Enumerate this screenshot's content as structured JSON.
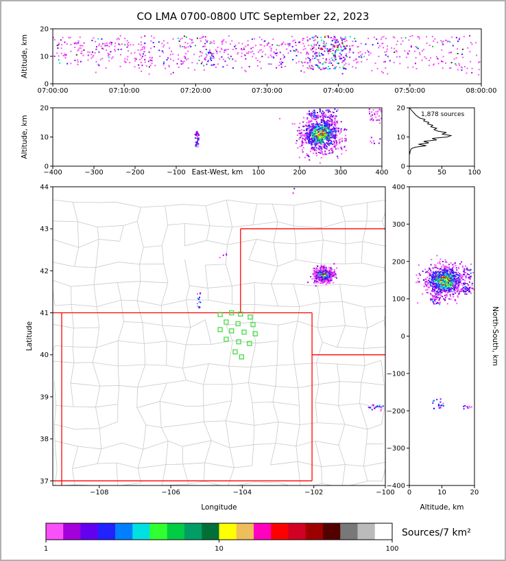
{
  "title": "CO LMA 0700-0800 UTC September 22, 2023",
  "colorbar": {
    "label": "Sources/7 km²",
    "ticks": [
      {
        "pos": 0,
        "t": "1"
      },
      {
        "pos": 0.5,
        "t": "10"
      },
      {
        "pos": 1,
        "t": "100"
      }
    ],
    "colors": [
      "#FA50FA",
      "#A400DC",
      "#6400F0",
      "#2222FF",
      "#0080FF",
      "#00E0E0",
      "#30FF30",
      "#00CC44",
      "#009E66",
      "#007038",
      "#FFFF00",
      "#EDBE5A",
      "#FF00BE",
      "#FF0000",
      "#D20022",
      "#9E0000",
      "#520000",
      "#787878",
      "#BBBBBB",
      "#FFFFFF"
    ]
  },
  "palettes": {
    "sparse": [
      [
        "#FA50FA",
        0.7
      ],
      [
        "#A400DC",
        0.12
      ],
      [
        "#6400F0",
        0.05
      ],
      [
        "#2222FF",
        0.05
      ],
      [
        "#00CC44",
        0.02
      ],
      [
        "#00E0E0",
        0.02
      ],
      [
        "#303030",
        0.04
      ]
    ],
    "mixed": [
      [
        "#FA50FA",
        0.28
      ],
      [
        "#A400DC",
        0.18
      ],
      [
        "#2222FF",
        0.16
      ],
      [
        "#00E0E0",
        0.12
      ],
      [
        "#30FF30",
        0.09
      ],
      [
        "#6400F0",
        0.09
      ],
      [
        "#0080FF",
        0.05
      ],
      [
        "#FF0000",
        0.03
      ]
    ],
    "smallmix": [
      [
        "#2222FF",
        0.32
      ],
      [
        "#A400DC",
        0.22
      ],
      [
        "#FA50FA",
        0.24
      ],
      [
        "#00E0E0",
        0.1
      ],
      [
        "#6400F0",
        0.12
      ]
    ],
    "edge": [
      [
        "#FA50FA",
        0.58
      ],
      [
        "#A400DC",
        0.28
      ],
      [
        "#6400F0",
        0.14
      ]
    ],
    "core": [
      [
        "#FFFF00",
        0.2
      ],
      [
        "#FF0000",
        0.16
      ],
      [
        "#30FF30",
        0.18
      ],
      [
        "#00E0E0",
        0.16
      ],
      [
        "#EDBE5A",
        0.08
      ],
      [
        "#00CC44",
        0.12
      ],
      [
        "#2222FF",
        0.1
      ]
    ],
    "mid": [
      [
        "#00E0E0",
        0.22
      ],
      [
        "#30FF30",
        0.18
      ],
      [
        "#2222FF",
        0.22
      ],
      [
        "#0080FF",
        0.14
      ],
      [
        "#00CC44",
        0.12
      ],
      [
        "#A400DC",
        0.12
      ]
    ],
    "outer": [
      [
        "#2222FF",
        0.3
      ],
      [
        "#6400F0",
        0.25
      ],
      [
        "#A400DC",
        0.25
      ],
      [
        "#0080FF",
        0.1
      ],
      [
        "#FA50FA",
        0.1
      ]
    ]
  },
  "chart_data": [
    {
      "id": "time_height",
      "type": "scatter",
      "ylabel": "Altitude, km",
      "xlim": [
        0,
        3600
      ],
      "ylim": [
        0,
        20
      ],
      "x_ticks": [
        {
          "v": 0,
          "t": "07:00:00"
        },
        {
          "v": 600,
          "t": "07:10:00"
        },
        {
          "v": 1200,
          "t": "07:20:00"
        },
        {
          "v": 1800,
          "t": "07:30:00"
        },
        {
          "v": 2400,
          "t": "07:40:00"
        },
        {
          "v": 3000,
          "t": "07:50:00"
        },
        {
          "v": 3600,
          "t": "08:00:00"
        }
      ],
      "y_ticks": [
        {
          "v": 0,
          "t": "0"
        },
        {
          "v": 10,
          "t": "10"
        },
        {
          "v": 20,
          "t": "20"
        }
      ],
      "clusters": [
        {
          "dist": "uniform",
          "x": [
            0,
            3600
          ],
          "y": [
            5.5,
            17.5
          ],
          "n": 520,
          "palette": "sparse"
        },
        {
          "dist": "uniform",
          "x": [
            30,
            2500
          ],
          "y": [
            7,
            16
          ],
          "n": 230,
          "palette": "sparse"
        },
        {
          "dist": "uniform",
          "x": [
            0,
            3600
          ],
          "y": [
            3.2,
            5.5
          ],
          "n": 22,
          "palette": "sparse"
        },
        {
          "dist": "uniform",
          "x": [
            1290,
            1360
          ],
          "y": [
            6.5,
            12
          ],
          "n": 16,
          "palette": "smallmix"
        },
        {
          "dist": "uniform",
          "x": [
            2150,
            2470
          ],
          "y": [
            5,
            17.5
          ],
          "n": 170,
          "palette": "mixed"
        }
      ]
    },
    {
      "id": "ew_height",
      "type": "scatter",
      "xlabel": "East-West, km",
      "ylabel": "Altitude, km",
      "xlim": [
        -400,
        400
      ],
      "ylim": [
        0,
        20
      ],
      "x_ticks": [
        {
          "v": -400,
          "t": "−400"
        },
        {
          "v": -300,
          "t": "−300"
        },
        {
          "v": -200,
          "t": "−200"
        },
        {
          "v": -100,
          "t": "−100"
        },
        {
          "v": 100,
          "t": "100"
        },
        {
          "v": 200,
          "t": "200"
        },
        {
          "v": 300,
          "t": "300"
        },
        {
          "v": 400,
          "t": "400"
        }
      ],
      "y_ticks": [
        {
          "v": 0,
          "t": "0"
        },
        {
          "v": 10,
          "t": "10"
        },
        {
          "v": 20,
          "t": "20"
        }
      ],
      "clusters": [
        {
          "dist": "gauss",
          "cx": 252,
          "cy": 10.8,
          "sx": 24,
          "sy": 3.1,
          "n": 880,
          "palette": "storm"
        },
        {
          "dist": "uniform",
          "x": [
            222,
            292
          ],
          "y": [
            16.5,
            19.6
          ],
          "n": 60,
          "palette": "outer"
        },
        {
          "dist": "uniform",
          "x": [
            -54,
            -45
          ],
          "y": [
            6.5,
            12
          ],
          "n": 38,
          "palette": "smallmix"
        },
        {
          "dist": "uniform",
          "x": [
            368,
            400
          ],
          "y": [
            14.5,
            19.6
          ],
          "n": 30,
          "palette": "edge"
        },
        {
          "dist": "uniform",
          "x": [
            372,
            398
          ],
          "y": [
            7.5,
            10
          ],
          "n": 8,
          "palette": "edge"
        }
      ]
    },
    {
      "id": "alt_histogram",
      "type": "line",
      "annotation": "1,878 sources",
      "xlim": [
        0,
        100
      ],
      "ylim": [
        0,
        20
      ],
      "x_ticks": [
        {
          "v": 0,
          "t": "0"
        },
        {
          "v": 50,
          "t": "50"
        },
        {
          "v": 100,
          "t": "100"
        }
      ],
      "y_ticks": [
        {
          "v": 0,
          "t": "0"
        },
        {
          "v": 10,
          "t": "10"
        },
        {
          "v": 20,
          "t": "20"
        }
      ],
      "alt_step": 0.5,
      "counts": [
        0,
        0,
        0,
        0,
        0,
        0,
        0,
        0,
        0,
        1,
        1,
        2,
        3,
        9,
        26,
        14,
        30,
        22,
        42,
        35,
        58,
        64,
        50,
        57,
        44,
        38,
        42,
        33,
        36,
        28,
        30,
        22,
        24,
        16,
        13,
        10,
        8,
        6,
        4,
        2,
        0
      ]
    },
    {
      "id": "map",
      "type": "scatter",
      "xlabel": "Longitude",
      "ylabel": "Latitude",
      "xlim": [
        -109.3,
        -100
      ],
      "ylim": [
        36.89,
        44
      ],
      "x_ticks": [
        {
          "v": -108,
          "t": "−108"
        },
        {
          "v": -106,
          "t": "−106"
        },
        {
          "v": -104,
          "t": "−104"
        },
        {
          "v": -102,
          "t": "−102"
        },
        {
          "v": -100,
          "t": "−100"
        }
      ],
      "y_ticks": [
        {
          "v": 37,
          "t": "37"
        },
        {
          "v": 38,
          "t": "38"
        },
        {
          "v": 39,
          "t": "39"
        },
        {
          "v": 40,
          "t": "40"
        },
        {
          "v": 41,
          "t": "41"
        },
        {
          "v": 42,
          "t": "42"
        },
        {
          "v": 43,
          "t": "43"
        },
        {
          "v": 44,
          "t": "44"
        }
      ],
      "county_line_color": "#C8C8C8",
      "state_border_color": "#FF0000",
      "station_color": "#44DD44",
      "state_borders": [
        [
          [
            -109.05,
            36.89
          ],
          [
            -109.05,
            41
          ]
        ],
        [
          [
            -109.3,
            41
          ],
          [
            -102.05,
            41
          ]
        ],
        [
          [
            -102.05,
            41
          ],
          [
            -102.05,
            37
          ]
        ],
        [
          [
            -109.3,
            37
          ],
          [
            -102.05,
            37
          ]
        ],
        [
          [
            -104.05,
            41
          ],
          [
            -104.05,
            43
          ]
        ],
        [
          [
            -104.05,
            43
          ],
          [
            -100,
            43
          ]
        ],
        [
          [
            -102.05,
            40
          ],
          [
            -100,
            40
          ]
        ]
      ],
      "stations": [
        [
          -104.62,
          40.96
        ],
        [
          -104.3,
          41.0
        ],
        [
          -104.05,
          40.97
        ],
        [
          -103.78,
          40.9
        ],
        [
          -104.45,
          40.78
        ],
        [
          -104.12,
          40.74
        ],
        [
          -103.7,
          40.72
        ],
        [
          -104.62,
          40.6
        ],
        [
          -104.3,
          40.57
        ],
        [
          -103.95,
          40.54
        ],
        [
          -103.64,
          40.5
        ],
        [
          -104.45,
          40.37
        ],
        [
          -104.1,
          40.31
        ],
        [
          -103.8,
          40.27
        ],
        [
          -104.2,
          40.07
        ],
        [
          -104.02,
          39.95
        ]
      ],
      "clusters": [
        {
          "dist": "gauss",
          "cx": -101.73,
          "cy": 41.9,
          "sx": 0.13,
          "sy": 0.085,
          "n": 520,
          "palette": "storm"
        },
        {
          "dist": "uniform",
          "x": [
            -102.02,
            -101.42
          ],
          "y": [
            41.7,
            42.12
          ],
          "n": 60,
          "palette": "edge"
        },
        {
          "dist": "uniform",
          "x": [
            -105.26,
            -105.17
          ],
          "y": [
            41.12,
            41.48
          ],
          "n": 14,
          "palette": "smallmix"
        },
        {
          "dist": "uniform",
          "x": [
            -100.52,
            -100.05
          ],
          "y": [
            38.64,
            38.82
          ],
          "n": 20,
          "palette": "smallmix"
        },
        {
          "dist": "uniform",
          "x": [
            -104.68,
            -104.42
          ],
          "y": [
            42.26,
            42.42
          ],
          "n": 4,
          "palette": "edge"
        },
        {
          "dist": "uniform",
          "x": [
            -102.6,
            -102.3
          ],
          "y": [
            43.82,
            43.98
          ],
          "n": 3,
          "palette": "edge"
        }
      ]
    },
    {
      "id": "ns_height",
      "type": "scatter",
      "xlabel": "Altitude, km",
      "ylabel": "North-South, km",
      "xlim": [
        0,
        20
      ],
      "ylim": [
        -400,
        400
      ],
      "x_ticks": [
        {
          "v": 0,
          "t": "0"
        },
        {
          "v": 10,
          "t": "10"
        },
        {
          "v": 20,
          "t": "20"
        }
      ],
      "y_ticks": [
        {
          "v": 400,
          "t": "400"
        },
        {
          "v": 300,
          "t": "300"
        },
        {
          "v": 200,
          "t": "200"
        },
        {
          "v": 100,
          "t": "100"
        },
        {
          "v": 0,
          "t": "0"
        },
        {
          "v": -100,
          "t": "−100"
        },
        {
          "v": -200,
          "t": "−200"
        },
        {
          "v": -300,
          "t": "−300"
        },
        {
          "v": -400,
          "t": "−400"
        }
      ],
      "clusters": [
        {
          "dist": "gauss",
          "cx": 10.8,
          "cy": 148,
          "sx": 3.1,
          "sy": 21,
          "n": 880,
          "palette": "storm"
        },
        {
          "dist": "uniform",
          "x": [
            16.5,
            19.6
          ],
          "y": [
            118,
            182
          ],
          "n": 60,
          "palette": "outer"
        },
        {
          "dist": "uniform",
          "x": [
            6.5,
            9.5
          ],
          "y": [
            84,
            106
          ],
          "n": 32,
          "palette": "smallmix"
        },
        {
          "dist": "uniform",
          "x": [
            7,
            10.5
          ],
          "y": [
            -196,
            -168
          ],
          "n": 18,
          "palette": "smallmix"
        },
        {
          "dist": "uniform",
          "x": [
            16.5,
            19.6
          ],
          "y": [
            -198,
            -180
          ],
          "n": 8,
          "palette": "edge"
        }
      ]
    }
  ]
}
